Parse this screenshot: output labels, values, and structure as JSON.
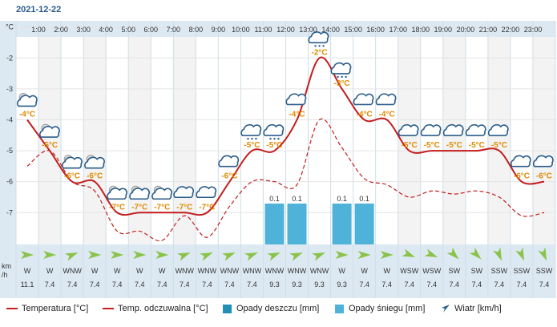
{
  "header": {
    "date": "2021-12-22"
  },
  "chart_data": {
    "type": "line",
    "hours": [
      "1:00",
      "2:00",
      "3:00",
      "4:00",
      "5:00",
      "6:00",
      "7:00",
      "8:00",
      "9:00",
      "10:00",
      "11:00",
      "12:00",
      "13:00",
      "14:00",
      "15:00",
      "16:00",
      "17:00",
      "18:00",
      "19:00",
      "20:00",
      "21:00",
      "22:00",
      "23:00"
    ],
    "temp_labels": [
      "-4°C",
      "-5°C",
      "-6°C",
      "-6°C",
      "-7°C",
      "-7°C",
      "-7°C",
      "-7°C",
      "-7°C",
      "-6°C",
      "-5°C",
      "-5°C",
      "-4°C",
      "-2°C",
      "-3°C",
      "-4°C",
      "-4°C",
      "-5°C",
      "-5°C",
      "-5°C",
      "-5°C",
      "-5°C",
      "-6°C",
      "-6°C"
    ],
    "temperature": [
      -4,
      -5,
      -6,
      -6,
      -7,
      -7,
      -7,
      -7,
      -7,
      -6,
      -5,
      -5,
      -4,
      -2,
      -3,
      -4,
      -4,
      -5,
      -5,
      -5,
      -5,
      -5,
      -6,
      -6
    ],
    "feels_like": [
      -5.5,
      -5,
      -6,
      -6.3,
      -7.6,
      -7.6,
      -7.9,
      -7.1,
      -7.8,
      -6.8,
      -6,
      -6,
      -6.1,
      -4,
      -4.9,
      -5.9,
      -6.1,
      -6.5,
      -6.3,
      -6.4,
      -6.3,
      -6.5,
      -7.1,
      -7
    ],
    "y_ticks": [
      "°C",
      "-2",
      "-3",
      "-4",
      "-5",
      "-6",
      "-7"
    ],
    "y_tick_values": [
      -1,
      -2,
      -3,
      -4,
      -5,
      -6,
      -7
    ],
    "ylim": [
      -8.03,
      -0.8
    ],
    "weather_icons": [
      "sun-cloud-icon",
      "sun-cloud-icon",
      "sun-cloud-icon",
      "sun-cloud-icon",
      "sun-cloud-icon",
      "sun-cloud-icon",
      "sun-cloud-icon",
      "cloud-icon",
      "cloud-icon",
      "cloud-icon",
      "cloud-snow-icon",
      "cloud-snow-icon",
      "cloud-icon",
      "cloud-snow-icon",
      "cloud-snow-icon",
      "cloud-icon",
      "cloud-icon",
      "cloud-icon",
      "cloud-icon",
      "cloud-icon",
      "cloud-icon",
      "cloud-icon",
      "cloud-icon",
      "cloud-icon"
    ],
    "snow_precip": [
      {
        "hour_index": 11,
        "value": 0.1,
        "label": "0.1"
      },
      {
        "hour_index": 12,
        "value": 0.1,
        "label": "0.1"
      },
      {
        "hour_index": 14,
        "value": 0.1,
        "label": "0.1"
      },
      {
        "hour_index": 15,
        "value": 0.1,
        "label": "0.1"
      }
    ],
    "wind_dir": [
      "W",
      "W",
      "WNW",
      "W",
      "W",
      "W",
      "W",
      "WNW",
      "WNW",
      "WNW",
      "WNW",
      "WNW",
      "WNW",
      "WNW",
      "W",
      "W",
      "W",
      "WSW",
      "WSW",
      "SW",
      "SW",
      "SSW",
      "SSW",
      "SSW"
    ],
    "wind_angle": [
      0,
      0,
      -22,
      0,
      0,
      0,
      0,
      -22,
      -22,
      -22,
      -22,
      -22,
      -22,
      -22,
      0,
      0,
      0,
      22,
      22,
      45,
      45,
      67,
      67,
      67
    ],
    "wind_speed": [
      "11.1",
      "7.4",
      "7.4",
      "7.4",
      "7.4",
      "7.4",
      "7.4",
      "7.4",
      "7.4",
      "7.4",
      "7.4",
      "9.3",
      "9.3",
      "9.3",
      "9.3",
      "7.4",
      "7.4",
      "7.4",
      "7.4",
      "7.4",
      "7.4",
      "7.4",
      "7.4",
      "7.4"
    ],
    "wind_unit_1": "km",
    "wind_unit_2": "/h",
    "colors": {
      "temp": "#c31d1d",
      "feels": "#c31d1d",
      "snow": "#4fb3d9",
      "rain": "#1f8fb5",
      "wind_arrow": "#8bc34a",
      "label": "#e08a00",
      "grid": "#e4e4e4",
      "band": "#f3f3f3",
      "axisband": "#dde9f2"
    }
  },
  "legend": {
    "temperature": "Temperatura [°C]",
    "feels_like": "Temp. odczuwalna [°C]",
    "rain": "Opady deszczu [mm]",
    "snow": "Opady śniegu [mm]",
    "wind": "Wiatr [km/h]"
  }
}
